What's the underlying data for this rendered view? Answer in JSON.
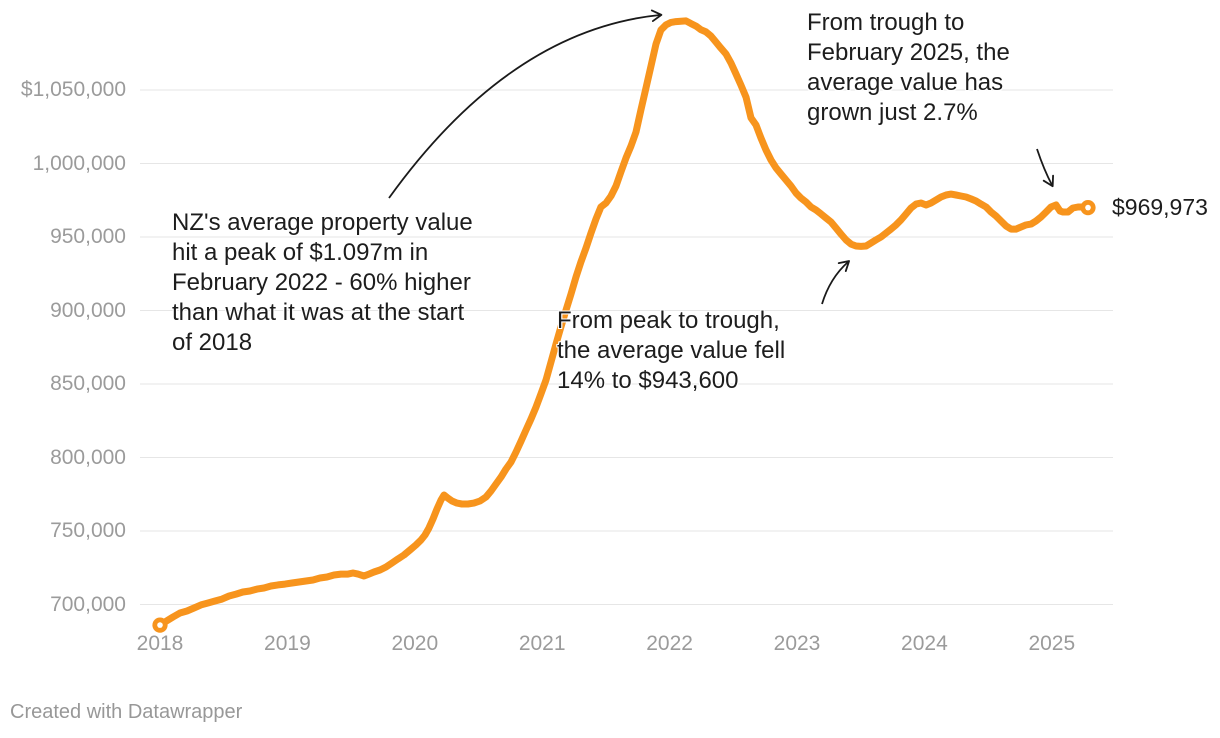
{
  "chart_data": {
    "type": "line",
    "title": "",
    "xlabel": "",
    "ylabel": "",
    "grid": "horizontal",
    "legend": "none",
    "x_domain": [
      2018,
      2025.3
    ],
    "y_domain": [
      680000,
      1100000
    ],
    "x_ticks": [
      {
        "label": "2018",
        "year": 2018
      },
      {
        "label": "2019",
        "year": 2019
      },
      {
        "label": "2020",
        "year": 2020
      },
      {
        "label": "2021",
        "year": 2021
      },
      {
        "label": "2022",
        "year": 2022
      },
      {
        "label": "2023",
        "year": 2023
      },
      {
        "label": "2024",
        "year": 2024
      },
      {
        "label": "2025",
        "year": 2025
      }
    ],
    "y_ticks": [
      {
        "label": "$1,050,000",
        "value": 1050000
      },
      {
        "label": "1,000,000",
        "value": 1000000
      },
      {
        "label": "950,000",
        "value": 950000
      },
      {
        "label": "900,000",
        "value": 900000
      },
      {
        "label": "850,000",
        "value": 850000
      },
      {
        "label": "800,000",
        "value": 800000
      },
      {
        "label": "750,000",
        "value": 750000
      },
      {
        "label": "700,000",
        "value": 700000
      }
    ],
    "series": [
      {
        "name": "NZ average property value",
        "points": [
          [
            2018.0,
            686000
          ],
          [
            2018.047,
            688600
          ],
          [
            2018.102,
            691500
          ],
          [
            2018.157,
            694200
          ],
          [
            2018.212,
            695600
          ],
          [
            2018.267,
            697600
          ],
          [
            2018.322,
            699700
          ],
          [
            2018.377,
            701000
          ],
          [
            2018.432,
            702400
          ],
          [
            2018.487,
            703700
          ],
          [
            2018.542,
            705800
          ],
          [
            2018.597,
            707100
          ],
          [
            2018.651,
            708500
          ],
          [
            2018.706,
            709200
          ],
          [
            2018.761,
            710500
          ],
          [
            2018.816,
            711200
          ],
          [
            2018.871,
            712600
          ],
          [
            2018.926,
            713300
          ],
          [
            2018.981,
            713900
          ],
          [
            2019.036,
            714600
          ],
          [
            2019.091,
            715300
          ],
          [
            2019.146,
            716000
          ],
          [
            2019.201,
            716700
          ],
          [
            2019.256,
            718000
          ],
          [
            2019.311,
            718700
          ],
          [
            2019.366,
            720100
          ],
          [
            2019.421,
            720700
          ],
          [
            2019.476,
            720700
          ],
          [
            2019.515,
            721400
          ],
          [
            2019.554,
            720700
          ],
          [
            2019.601,
            719400
          ],
          [
            2019.64,
            720700
          ],
          [
            2019.68,
            722100
          ],
          [
            2019.727,
            723500
          ],
          [
            2019.774,
            725500
          ],
          [
            2019.821,
            728200
          ],
          [
            2019.868,
            731000
          ],
          [
            2019.915,
            733700
          ],
          [
            2019.962,
            737100
          ],
          [
            2020.009,
            740500
          ],
          [
            2020.049,
            743900
          ],
          [
            2020.08,
            747300
          ],
          [
            2020.111,
            752000
          ],
          [
            2020.143,
            758200
          ],
          [
            2020.174,
            765000
          ],
          [
            2020.206,
            771100
          ],
          [
            2020.229,
            774500
          ],
          [
            2020.26,
            772400
          ],
          [
            2020.292,
            770400
          ],
          [
            2020.331,
            769000
          ],
          [
            2020.37,
            768400
          ],
          [
            2020.417,
            768400
          ],
          [
            2020.464,
            769000
          ],
          [
            2020.512,
            770400
          ],
          [
            2020.559,
            773100
          ],
          [
            2020.598,
            777200
          ],
          [
            2020.637,
            782000
          ],
          [
            2020.677,
            786700
          ],
          [
            2020.716,
            792200
          ],
          [
            2020.755,
            796900
          ],
          [
            2020.794,
            803700
          ],
          [
            2020.834,
            811200
          ],
          [
            2020.873,
            818700
          ],
          [
            2020.912,
            826200
          ],
          [
            2020.951,
            834300
          ],
          [
            2020.99,
            843200
          ],
          [
            2021.03,
            852700
          ],
          [
            2021.069,
            865000
          ],
          [
            2021.108,
            877200
          ],
          [
            2021.147,
            888800
          ],
          [
            2021.187,
            900300
          ],
          [
            2021.226,
            911200
          ],
          [
            2021.265,
            922800
          ],
          [
            2021.304,
            933000
          ],
          [
            2021.344,
            942500
          ],
          [
            2021.383,
            952700
          ],
          [
            2021.422,
            962300
          ],
          [
            2021.461,
            970400
          ],
          [
            2021.501,
            973100
          ],
          [
            2021.54,
            977900
          ],
          [
            2021.579,
            984700
          ],
          [
            2021.618,
            994200
          ],
          [
            2021.658,
            1003800
          ],
          [
            2021.697,
            1011900
          ],
          [
            2021.736,
            1021400
          ],
          [
            2021.775,
            1036400
          ],
          [
            2021.815,
            1051400
          ],
          [
            2021.854,
            1066300
          ],
          [
            2021.893,
            1081300
          ],
          [
            2021.932,
            1090800
          ],
          [
            2021.972,
            1094300
          ],
          [
            2022.011,
            1096000
          ],
          [
            2022.05,
            1096500
          ],
          [
            2022.089,
            1096800
          ],
          [
            2022.129,
            1097000
          ],
          [
            2022.168,
            1095200
          ],
          [
            2022.207,
            1093500
          ],
          [
            2022.246,
            1091000
          ],
          [
            2022.286,
            1089500
          ],
          [
            2022.325,
            1086700
          ],
          [
            2022.364,
            1082600
          ],
          [
            2022.403,
            1078500
          ],
          [
            2022.443,
            1074500
          ],
          [
            2022.482,
            1068300
          ],
          [
            2022.521,
            1060900
          ],
          [
            2022.56,
            1053400
          ],
          [
            2022.6,
            1045200
          ],
          [
            2022.639,
            1031000
          ],
          [
            2022.678,
            1026200
          ],
          [
            2022.717,
            1017400
          ],
          [
            2022.757,
            1009200
          ],
          [
            2022.796,
            1002400
          ],
          [
            2022.835,
            997000
          ],
          [
            2022.874,
            992900
          ],
          [
            2022.914,
            988800
          ],
          [
            2022.953,
            984700
          ],
          [
            2022.992,
            979900
          ],
          [
            2023.031,
            976500
          ],
          [
            2023.071,
            973800
          ],
          [
            2023.11,
            970400
          ],
          [
            2023.149,
            968400
          ],
          [
            2023.188,
            965700
          ],
          [
            2023.228,
            962900
          ],
          [
            2023.267,
            960200
          ],
          [
            2023.306,
            956100
          ],
          [
            2023.345,
            952000
          ],
          [
            2023.385,
            948000
          ],
          [
            2023.424,
            945200
          ],
          [
            2023.463,
            943900
          ],
          [
            2023.502,
            943600
          ],
          [
            2023.542,
            943900
          ],
          [
            2023.581,
            945900
          ],
          [
            2023.62,
            948000
          ],
          [
            2023.659,
            950000
          ],
          [
            2023.699,
            952700
          ],
          [
            2023.738,
            955400
          ],
          [
            2023.777,
            958200
          ],
          [
            2023.816,
            961600
          ],
          [
            2023.856,
            965700
          ],
          [
            2023.895,
            969700
          ],
          [
            2023.934,
            972400
          ],
          [
            2023.973,
            973100
          ],
          [
            2024.013,
            971800
          ],
          [
            2024.052,
            973100
          ],
          [
            2024.091,
            975200
          ],
          [
            2024.13,
            977200
          ],
          [
            2024.17,
            978600
          ],
          [
            2024.209,
            979200
          ],
          [
            2024.248,
            978600
          ],
          [
            2024.287,
            977900
          ],
          [
            2024.327,
            977200
          ],
          [
            2024.366,
            975900
          ],
          [
            2024.405,
            974500
          ],
          [
            2024.444,
            972400
          ],
          [
            2024.484,
            970400
          ],
          [
            2024.523,
            967000
          ],
          [
            2024.562,
            964300
          ],
          [
            2024.601,
            960900
          ],
          [
            2024.641,
            957500
          ],
          [
            2024.68,
            955400
          ],
          [
            2024.719,
            955400
          ],
          [
            2024.758,
            956800
          ],
          [
            2024.798,
            958200
          ],
          [
            2024.837,
            958800
          ],
          [
            2024.876,
            960900
          ],
          [
            2024.915,
            963600
          ],
          [
            2024.955,
            967000
          ],
          [
            2024.994,
            970400
          ],
          [
            2025.033,
            971800
          ],
          [
            2025.064,
            967700
          ],
          [
            2025.088,
            967000
          ],
          [
            2025.127,
            967000
          ],
          [
            2025.166,
            969700
          ],
          [
            2025.206,
            970400
          ],
          [
            2025.245,
            970400
          ],
          [
            2025.284,
            969973
          ]
        ]
      }
    ],
    "start_point": {
      "year": 2018.0,
      "value": 686000
    },
    "end_point": {
      "year": 2025.284,
      "value": 969973
    },
    "end_label": "$969,973",
    "annotations": [
      {
        "id": "peak",
        "text": "NZ's average property value\nhit a peak of $1.097m in\nFebruary 2022 - 60% higher\nthan what it was at the start\nof 2018"
      },
      {
        "id": "trough",
        "text": "From peak to trough,\nthe average value fell\n14% to $943,600"
      },
      {
        "id": "recovery",
        "text": "From trough to\nFebruary 2025, the\naverage value has\ngrown just 2.7%"
      }
    ],
    "key_values": {
      "peak_value": "$1.097m",
      "peak_month": "February 2022",
      "rise_from_2018": "60%",
      "fall_peak_to_trough": "14%",
      "trough_value": "$943,600",
      "growth_since_trough": "2.7%",
      "latest_value": "$969,973"
    }
  },
  "colors": {
    "line": "#F7941D",
    "grid": "#E6E6E6",
    "axis_text": "#9B9B9B",
    "annotation_text": "#1D1D1D",
    "arrow": "#1A1A1A",
    "footer_text": "#989898",
    "background": "#FFFFFF"
  },
  "footer": {
    "credit": "Created with Datawrapper"
  }
}
